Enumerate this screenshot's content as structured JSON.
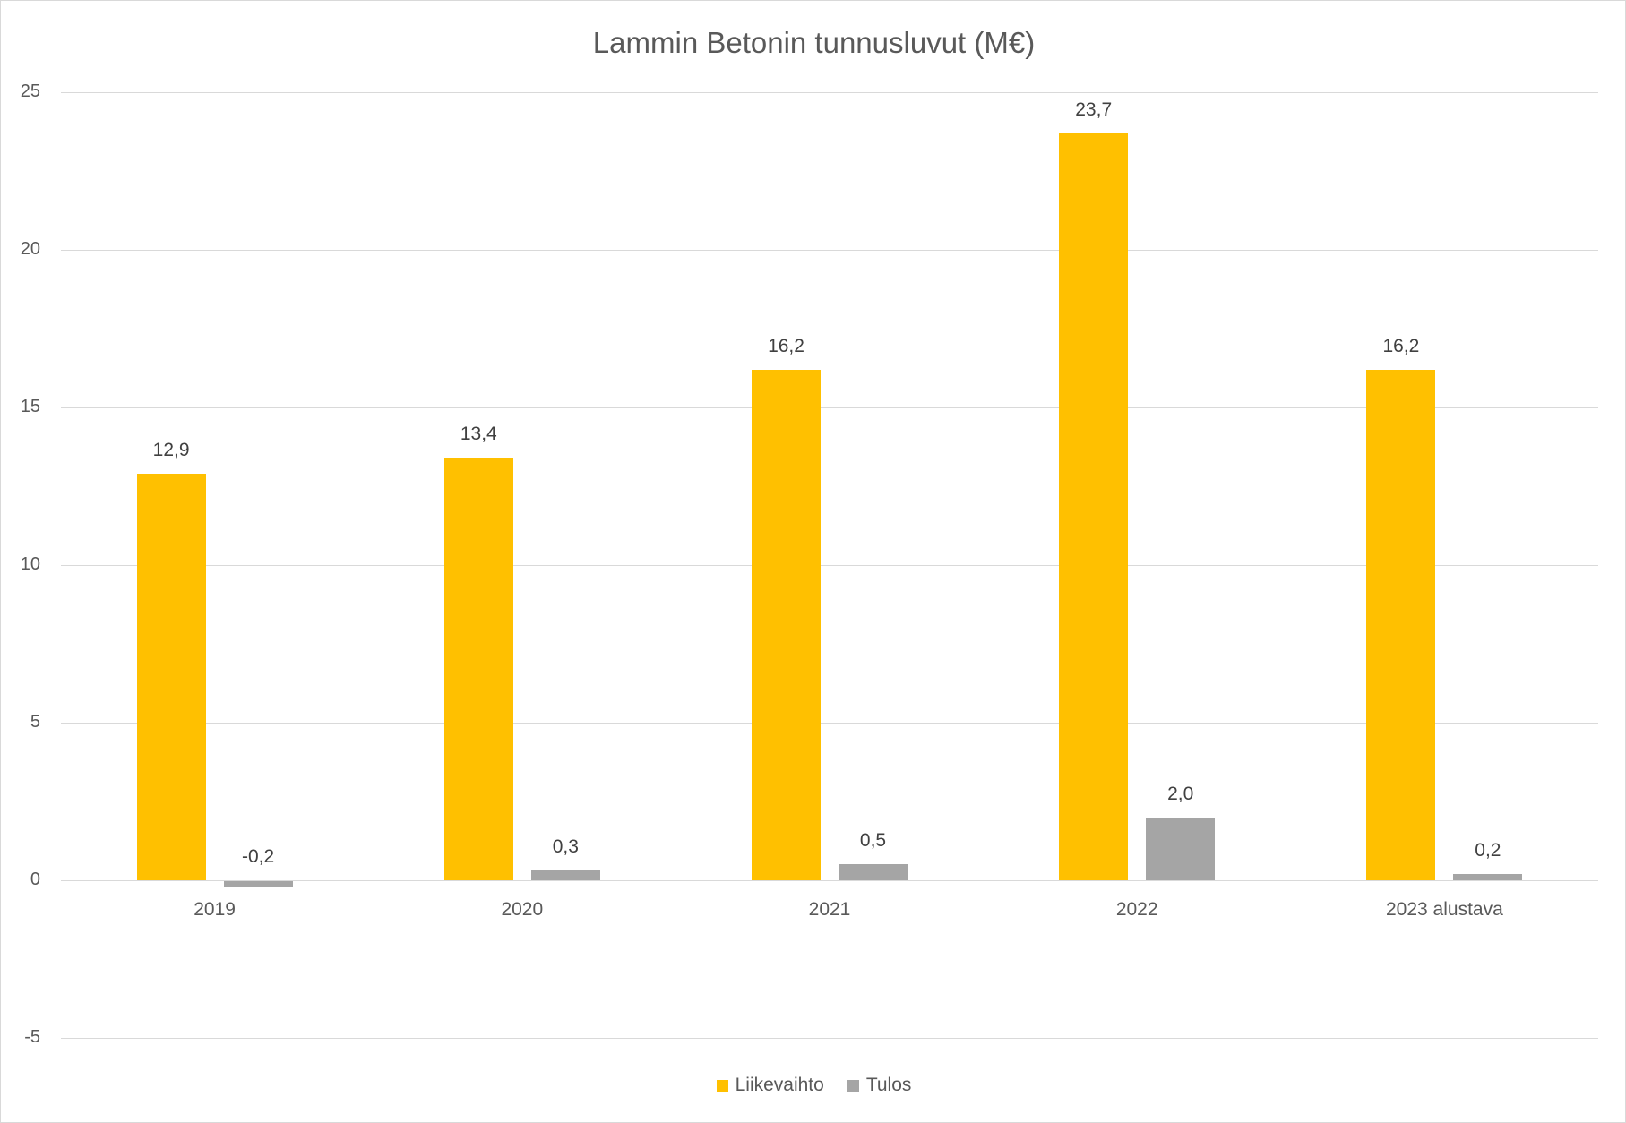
{
  "chart_data": {
    "type": "bar",
    "title": "Lammin Betonin tunnusluvut (M€)",
    "xlabel": "",
    "ylabel": "",
    "ylim": [
      -5,
      25
    ],
    "yticks": [
      25,
      20,
      15,
      10,
      5,
      0,
      -5
    ],
    "grid": true,
    "legend_position": "bottom",
    "categories": [
      "2019",
      "2020",
      "2021",
      "2022",
      "2023 alustava"
    ],
    "series": [
      {
        "name": "Liikevaihto",
        "color": "#FFC000",
        "values": [
          12.9,
          13.4,
          16.2,
          23.7,
          16.2
        ],
        "labels": [
          "12,9",
          "13,4",
          "16,2",
          "23,7",
          "16,2"
        ]
      },
      {
        "name": "Tulos",
        "color": "#A5A5A5",
        "values": [
          -0.2,
          0.3,
          0.5,
          2.0,
          0.2
        ],
        "labels": [
          "-0,2",
          "0,3",
          "0,5",
          "2,0",
          "0,2"
        ]
      }
    ]
  }
}
